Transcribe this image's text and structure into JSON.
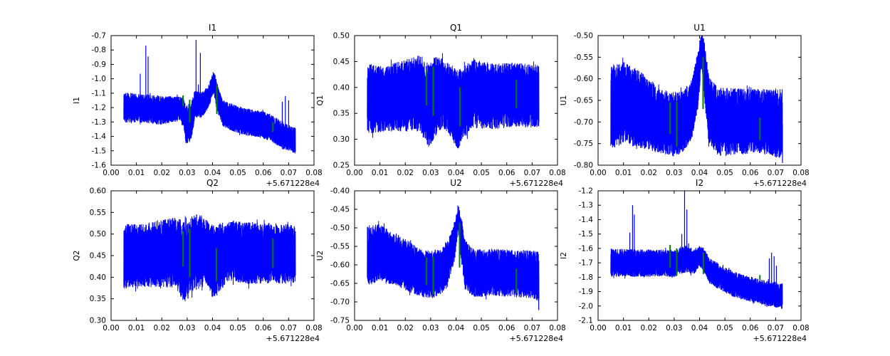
{
  "figure": {
    "background_color": "#ffffff",
    "series_color": "#0000ff",
    "mask_color": "#008000",
    "axis_color": "#000000",
    "x_offset_label": "+5.671228e4",
    "xlim": [
      0,
      0.08
    ],
    "xtick_values": [
      0,
      0.01,
      0.02,
      0.03,
      0.04,
      0.05,
      0.06,
      0.07,
      0.08
    ],
    "xtick_labels": [
      "0.00",
      "0.01",
      "0.02",
      "0.03",
      "0.04",
      "0.05",
      "0.06",
      "0.07",
      "0.08"
    ]
  },
  "chart_data": [
    {
      "type": "line",
      "title": "I1",
      "ylabel": "I1",
      "ylim": [
        -1.6,
        -0.7
      ],
      "ytick_values": [
        -1.6,
        -1.5,
        -1.4,
        -1.3,
        -1.2,
        -1.1,
        -1.0,
        -0.9,
        -0.8,
        -0.7
      ],
      "ytick_labels": [
        "-1.6",
        "-1.5",
        "-1.4",
        "-1.3",
        "-1.2",
        "-1.1",
        "-1.0",
        "-0.9",
        "-0.8",
        "-0.7"
      ],
      "x_start": 0.005,
      "x_end": 0.0727,
      "noise_envelope": [
        [
          0.005,
          -1.2,
          0.105
        ],
        [
          0.013,
          -1.205,
          0.1
        ],
        [
          0.02,
          -1.22,
          0.1
        ],
        [
          0.0265,
          -1.205,
          0.085
        ],
        [
          0.0285,
          -1.23,
          0.105
        ],
        [
          0.0295,
          -1.32,
          0.13
        ],
        [
          0.0315,
          -1.3,
          0.14
        ],
        [
          0.033,
          -1.18,
          0.1
        ],
        [
          0.036,
          -1.18,
          0.09
        ],
        [
          0.0385,
          -1.12,
          0.08
        ],
        [
          0.0405,
          -1.02,
          0.08
        ],
        [
          0.0417,
          -1.12,
          0.1
        ],
        [
          0.044,
          -1.24,
          0.09
        ],
        [
          0.048,
          -1.27,
          0.095
        ],
        [
          0.053,
          -1.3,
          0.095
        ],
        [
          0.058,
          -1.31,
          0.095
        ],
        [
          0.063,
          -1.34,
          0.095
        ],
        [
          0.068,
          -1.4,
          0.095
        ],
        [
          0.0727,
          -1.43,
          0.09
        ]
      ],
      "spikes": [
        [
          0.0115,
          -0.965
        ],
        [
          0.0137,
          -0.77
        ],
        [
          0.0146,
          -0.845
        ],
        [
          0.0335,
          -0.73
        ],
        [
          0.0344,
          -1.04
        ],
        [
          0.0352,
          -0.82
        ],
        [
          0.0675,
          -1.16
        ],
        [
          0.0687,
          -1.12
        ],
        [
          0.07,
          -1.15
        ]
      ],
      "mask_marks": [
        [
          0.0284,
          -1.115,
          -1.19
        ],
        [
          0.031,
          -1.145,
          -1.305
        ],
        [
          0.0417,
          -1.05,
          -1.245
        ],
        [
          0.0638,
          -1.3,
          -1.37
        ]
      ]
    },
    {
      "type": "line",
      "title": "Q1",
      "ylabel": "Q1",
      "ylim": [
        0.25,
        0.5
      ],
      "ytick_values": [
        0.25,
        0.3,
        0.35,
        0.4,
        0.45,
        0.5
      ],
      "ytick_labels": [
        "0.25",
        "0.30",
        "0.35",
        "0.40",
        "0.45",
        "0.50"
      ],
      "x_start": 0.005,
      "x_end": 0.0727,
      "noise_envelope": [
        [
          0.005,
          0.378,
          0.068
        ],
        [
          0.012,
          0.378,
          0.063
        ],
        [
          0.02,
          0.385,
          0.07
        ],
        [
          0.026,
          0.388,
          0.075
        ],
        [
          0.0295,
          0.362,
          0.082
        ],
        [
          0.0315,
          0.382,
          0.078
        ],
        [
          0.035,
          0.388,
          0.068
        ],
        [
          0.038,
          0.375,
          0.07
        ],
        [
          0.0405,
          0.355,
          0.078
        ],
        [
          0.043,
          0.372,
          0.07
        ],
        [
          0.047,
          0.388,
          0.066
        ],
        [
          0.055,
          0.382,
          0.064
        ],
        [
          0.062,
          0.386,
          0.062
        ],
        [
          0.068,
          0.384,
          0.062
        ],
        [
          0.0727,
          0.384,
          0.06
        ]
      ],
      "spikes": [],
      "mask_marks": [
        [
          0.0284,
          0.365,
          0.435
        ],
        [
          0.031,
          0.345,
          0.44
        ],
        [
          0.0415,
          0.325,
          0.4
        ],
        [
          0.0638,
          0.36,
          0.415
        ]
      ]
    },
    {
      "type": "line",
      "title": "U1",
      "ylabel": "U1",
      "ylim": [
        -0.8,
        -0.5
      ],
      "ytick_values": [
        -0.8,
        -0.75,
        -0.7,
        -0.65,
        -0.6,
        -0.55,
        -0.5
      ],
      "ytick_labels": [
        "-0.80",
        "-0.75",
        "-0.70",
        "-0.65",
        "-0.60",
        "-0.55",
        "-0.50"
      ],
      "x_start": 0.005,
      "x_end": 0.0727,
      "noise_envelope": [
        [
          0.005,
          -0.665,
          0.1
        ],
        [
          0.01,
          -0.655,
          0.095
        ],
        [
          0.016,
          -0.67,
          0.09
        ],
        [
          0.022,
          -0.69,
          0.08
        ],
        [
          0.027,
          -0.705,
          0.072
        ],
        [
          0.03,
          -0.705,
          0.075
        ],
        [
          0.0335,
          -0.7,
          0.072
        ],
        [
          0.037,
          -0.67,
          0.07
        ],
        [
          0.0395,
          -0.6,
          0.065
        ],
        [
          0.0408,
          -0.525,
          0.045
        ],
        [
          0.0418,
          -0.575,
          0.065
        ],
        [
          0.0435,
          -0.665,
          0.08
        ],
        [
          0.047,
          -0.7,
          0.08
        ],
        [
          0.054,
          -0.7,
          0.078
        ],
        [
          0.062,
          -0.695,
          0.076
        ],
        [
          0.068,
          -0.7,
          0.078
        ],
        [
          0.0727,
          -0.705,
          0.082
        ]
      ],
      "spikes": [
        [
          0.0727,
          -0.795
        ]
      ],
      "mask_marks": [
        [
          0.0284,
          -0.655,
          -0.728
        ],
        [
          0.031,
          -0.653,
          -0.757
        ],
        [
          0.0414,
          -0.55,
          -0.67
        ],
        [
          0.0638,
          -0.69,
          -0.742
        ]
      ]
    },
    {
      "type": "line",
      "title": "Q2",
      "ylabel": "Q2",
      "ylim": [
        0.3,
        0.6
      ],
      "ytick_values": [
        0.3,
        0.35,
        0.4,
        0.45,
        0.5,
        0.55,
        0.6
      ],
      "ytick_labels": [
        "0.30",
        "0.35",
        "0.40",
        "0.45",
        "0.50",
        "0.55",
        "0.60"
      ],
      "x_start": 0.005,
      "x_end": 0.0727,
      "noise_envelope": [
        [
          0.005,
          0.448,
          0.075
        ],
        [
          0.012,
          0.45,
          0.073
        ],
        [
          0.019,
          0.455,
          0.078
        ],
        [
          0.0255,
          0.458,
          0.082
        ],
        [
          0.0295,
          0.432,
          0.098
        ],
        [
          0.0315,
          0.452,
          0.088
        ],
        [
          0.035,
          0.462,
          0.088
        ],
        [
          0.038,
          0.455,
          0.075
        ],
        [
          0.0405,
          0.432,
          0.088
        ],
        [
          0.043,
          0.448,
          0.078
        ],
        [
          0.047,
          0.46,
          0.072
        ],
        [
          0.055,
          0.456,
          0.072
        ],
        [
          0.063,
          0.456,
          0.07
        ],
        [
          0.069,
          0.454,
          0.07
        ],
        [
          0.0727,
          0.452,
          0.066
        ]
      ],
      "spikes": [],
      "mask_marks": [
        [
          0.0284,
          0.425,
          0.507
        ],
        [
          0.031,
          0.4,
          0.512
        ],
        [
          0.0415,
          0.39,
          0.467
        ],
        [
          0.0638,
          0.421,
          0.49
        ]
      ]
    },
    {
      "type": "line",
      "title": "U2",
      "ylabel": "U2",
      "ylim": [
        -0.75,
        -0.4
      ],
      "ytick_values": [
        -0.75,
        -0.7,
        -0.65,
        -0.6,
        -0.55,
        -0.5,
        -0.45,
        -0.4
      ],
      "ytick_labels": [
        "-0.75",
        "-0.70",
        "-0.65",
        "-0.60",
        "-0.55",
        "-0.50",
        "-0.45",
        "-0.40"
      ],
      "x_start": 0.005,
      "x_end": 0.0727,
      "noise_envelope": [
        [
          0.005,
          -0.575,
          0.082
        ],
        [
          0.01,
          -0.567,
          0.077
        ],
        [
          0.016,
          -0.585,
          0.072
        ],
        [
          0.022,
          -0.607,
          0.068
        ],
        [
          0.027,
          -0.625,
          0.063
        ],
        [
          0.03,
          -0.625,
          0.066
        ],
        [
          0.0335,
          -0.622,
          0.063
        ],
        [
          0.0365,
          -0.6,
          0.062
        ],
        [
          0.0392,
          -0.545,
          0.058
        ],
        [
          0.0408,
          -0.472,
          0.038
        ],
        [
          0.0418,
          -0.52,
          0.058
        ],
        [
          0.0435,
          -0.6,
          0.068
        ],
        [
          0.047,
          -0.623,
          0.066
        ],
        [
          0.054,
          -0.62,
          0.064
        ],
        [
          0.062,
          -0.623,
          0.064
        ],
        [
          0.068,
          -0.625,
          0.065
        ],
        [
          0.0727,
          -0.63,
          0.068
        ]
      ],
      "spikes": [
        [
          0.0726,
          -0.722
        ]
      ],
      "mask_marks": [
        [
          0.0284,
          -0.58,
          -0.655
        ],
        [
          0.031,
          -0.578,
          -0.68
        ],
        [
          0.0414,
          -0.487,
          -0.607
        ],
        [
          0.0638,
          -0.61,
          -0.676
        ]
      ]
    },
    {
      "type": "line",
      "title": "I2",
      "ylabel": "I2",
      "ylim": [
        -2.1,
        -1.2
      ],
      "ytick_values": [
        -2.1,
        -2.0,
        -1.9,
        -1.8,
        -1.7,
        -1.6,
        -1.5,
        -1.4,
        -1.3,
        -1.2
      ],
      "ytick_labels": [
        "-2.1",
        "-2.0",
        "-1.9",
        "-1.8",
        "-1.7",
        "-1.6",
        "-1.5",
        "-1.4",
        "-1.3",
        "-1.2"
      ],
      "x_start": 0.005,
      "x_end": 0.0727,
      "noise_envelope": [
        [
          0.005,
          -1.7,
          0.1
        ],
        [
          0.012,
          -1.7,
          0.095
        ],
        [
          0.019,
          -1.705,
          0.097
        ],
        [
          0.026,
          -1.7,
          0.092
        ],
        [
          0.0295,
          -1.71,
          0.095
        ],
        [
          0.032,
          -1.69,
          0.092
        ],
        [
          0.035,
          -1.67,
          0.095
        ],
        [
          0.0375,
          -1.7,
          0.09
        ],
        [
          0.0398,
          -1.655,
          0.072
        ],
        [
          0.0415,
          -1.675,
          0.082
        ],
        [
          0.044,
          -1.755,
          0.09
        ],
        [
          0.048,
          -1.8,
          0.088
        ],
        [
          0.053,
          -1.845,
          0.09
        ],
        [
          0.058,
          -1.875,
          0.088
        ],
        [
          0.063,
          -1.895,
          0.088
        ],
        [
          0.068,
          -1.915,
          0.09
        ],
        [
          0.0727,
          -1.93,
          0.09
        ]
      ],
      "spikes": [
        [
          0.0125,
          -1.49
        ],
        [
          0.0136,
          -1.3
        ],
        [
          0.0143,
          -1.365
        ],
        [
          0.033,
          -1.5
        ],
        [
          0.0341,
          -1.2
        ],
        [
          0.035,
          -1.33
        ],
        [
          0.0357,
          -1.565
        ],
        [
          0.0675,
          -1.67
        ],
        [
          0.0684,
          -1.63
        ],
        [
          0.0694,
          -1.655
        ],
        [
          0.0703,
          -1.72
        ],
        [
          0.0724,
          -2.02
        ]
      ],
      "mask_marks": [
        [
          0.0284,
          -1.575,
          -1.735
        ],
        [
          0.031,
          -1.6,
          -1.79
        ],
        [
          0.0415,
          -1.628,
          -1.778
        ],
        [
          0.0638,
          -1.785,
          -1.818
        ]
      ]
    }
  ]
}
